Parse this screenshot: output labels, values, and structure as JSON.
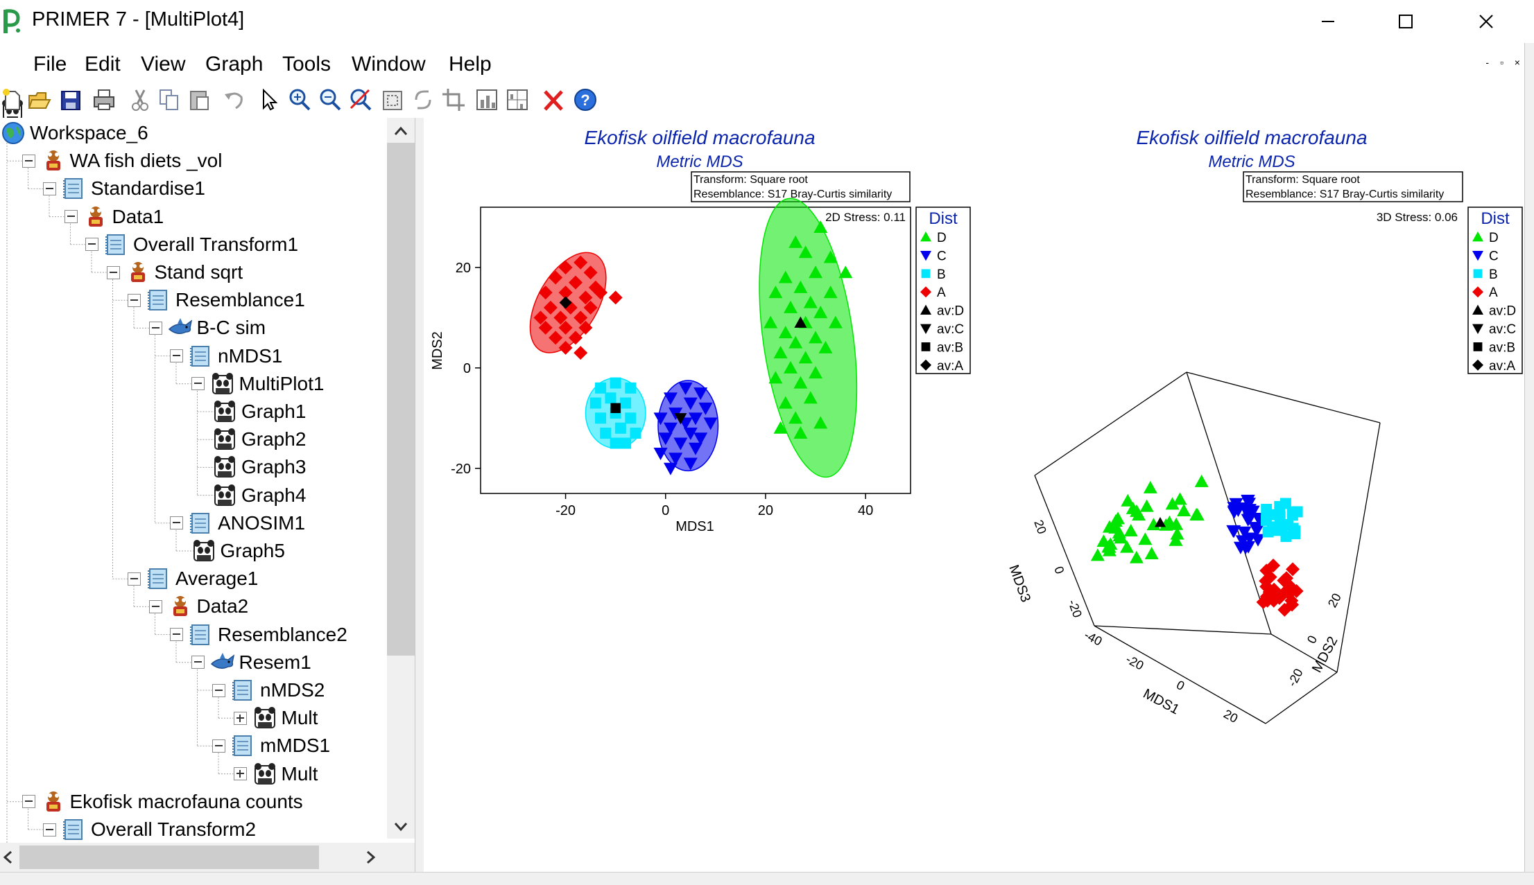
{
  "window": {
    "title": "PRIMER 7 - [MultiPlot4]",
    "app_icon": "primer-logo-icon",
    "controls": [
      "minimize-icon",
      "maximize-icon",
      "close-icon"
    ],
    "mdi_controls": "- ▫ ×"
  },
  "menu": {
    "items": [
      "File",
      "Edit",
      "View",
      "Graph",
      "Tools",
      "Window",
      "Help"
    ]
  },
  "toolbar": {
    "buttons": [
      "new-icon",
      "open-icon",
      "save-icon",
      "print-icon",
      "cut-icon",
      "copy-icon",
      "paste-icon",
      "undo-icon",
      "pointer-icon",
      "zoom-in-icon",
      "zoom-out-icon",
      "zoom-reset-icon",
      "select-all-icon",
      "rotate-icon",
      "crop-icon",
      "plot-icon",
      "multiplot-icon",
      "delete-icon",
      "help-icon"
    ]
  },
  "workspace": {
    "items": [
      {
        "label": "Workspace_6",
        "icon": "globe-icon",
        "indent": 0,
        "expander": "none"
      },
      {
        "label": "WA fish diets _vol",
        "icon": "data-icon",
        "indent": 1,
        "expander": "minus"
      },
      {
        "label": "Standardise1",
        "icon": "worksheet-icon",
        "indent": 2,
        "expander": "minus"
      },
      {
        "label": "Data1",
        "icon": "data-icon",
        "indent": 3,
        "expander": "minus"
      },
      {
        "label": "Overall Transform1",
        "icon": "worksheet-icon",
        "indent": 4,
        "expander": "minus"
      },
      {
        "label": "Stand sqrt",
        "icon": "data-icon",
        "indent": 5,
        "expander": "minus"
      },
      {
        "label": "Resemblance1",
        "icon": "worksheet-icon",
        "indent": 6,
        "expander": "minus"
      },
      {
        "label": "B-C sim",
        "icon": "shark-icon",
        "indent": 7,
        "expander": "minus"
      },
      {
        "label": "nMDS1",
        "icon": "worksheet-icon",
        "indent": 8,
        "expander": "minus"
      },
      {
        "label": "MultiPlot1",
        "icon": "graph-icon",
        "indent": 9,
        "expander": "minus"
      },
      {
        "label": "Graph1",
        "icon": "graph-icon",
        "indent": 10,
        "expander": "none"
      },
      {
        "label": "Graph2",
        "icon": "graph-icon",
        "indent": 10,
        "expander": "none"
      },
      {
        "label": "Graph3",
        "icon": "graph-icon",
        "indent": 10,
        "expander": "none"
      },
      {
        "label": "Graph4",
        "icon": "graph-icon",
        "indent": 10,
        "expander": "none"
      },
      {
        "label": "ANOSIM1",
        "icon": "worksheet-icon",
        "indent": 8,
        "expander": "minus"
      },
      {
        "label": "Graph5",
        "icon": "graph-icon",
        "indent": 9,
        "expander": "none"
      },
      {
        "label": "Average1",
        "icon": "worksheet-icon",
        "indent": 6,
        "expander": "minus"
      },
      {
        "label": "Data2",
        "icon": "data-icon",
        "indent": 7,
        "expander": "minus"
      },
      {
        "label": "Resemblance2",
        "icon": "worksheet-icon",
        "indent": 8,
        "expander": "minus"
      },
      {
        "label": "Resem1",
        "icon": "shark-icon",
        "indent": 9,
        "expander": "minus"
      },
      {
        "label": "nMDS2",
        "icon": "worksheet-icon",
        "indent": 10,
        "expander": "minus"
      },
      {
        "label": "Mult",
        "icon": "graph-icon",
        "indent": 11,
        "expander": "plus"
      },
      {
        "label": "mMDS1",
        "icon": "worksheet-icon",
        "indent": 10,
        "expander": "minus"
      },
      {
        "label": "Mult",
        "icon": "graph-icon",
        "indent": 11,
        "expander": "plus"
      },
      {
        "label": "Ekofisk macrofauna counts",
        "icon": "data-icon",
        "indent": 1,
        "expander": "minus"
      },
      {
        "label": "Overall Transform2",
        "icon": "worksheet-icon",
        "indent": 2,
        "expander": "minus"
      }
    ]
  },
  "plot_left": {
    "title": "Ekofisk oilfield macrofauna",
    "subtitle": "Metric MDS",
    "info_lines": [
      "Transform: Square root",
      "Resemblance: S17 Bray-Curtis similarity"
    ],
    "stress": "2D Stress: 0.11",
    "xlabel": "MDS1",
    "ylabel": "MDS2",
    "xticks": [
      "-20",
      "0",
      "20",
      "40"
    ],
    "yticks": [
      "20",
      "0",
      "-20"
    ]
  },
  "plot_right": {
    "title": "Ekofisk oilfield macrofauna",
    "subtitle": "Metric MDS",
    "info_lines": [
      "Transform: Square root",
      "Resemblance: S17 Bray-Curtis similarity"
    ],
    "stress": "3D Stress: 0.06",
    "axis_labels": [
      "MDS1",
      "MDS2",
      "MDS3"
    ],
    "mds1_ticks": [
      "-40",
      "-20",
      "0",
      "20"
    ],
    "mds2_ticks": [
      "-20",
      "0",
      "20"
    ],
    "mds3_ticks": [
      "20",
      "0",
      "-20"
    ]
  },
  "legend": {
    "title": "Dist",
    "entries": [
      {
        "label": "D",
        "marker": "triangle-up",
        "color": "#00e600"
      },
      {
        "label": "C",
        "marker": "triangle-down",
        "color": "#0000ee"
      },
      {
        "label": "B",
        "marker": "square",
        "color": "#00e6ff"
      },
      {
        "label": "A",
        "marker": "diamond",
        "color": "#ee0000"
      },
      {
        "label": "av:D",
        "marker": "triangle-up",
        "color": "#000000"
      },
      {
        "label": "av:C",
        "marker": "triangle-down",
        "color": "#000000"
      },
      {
        "label": "av:B",
        "marker": "square",
        "color": "#000000"
      },
      {
        "label": "av:A",
        "marker": "diamond",
        "color": "#000000"
      }
    ]
  },
  "colors": {
    "title_blue": "#0b24ac",
    "group_D": "#00e600",
    "group_C": "#0000ee",
    "group_B": "#00e6ff",
    "group_A": "#ee0000"
  },
  "chart_data": [
    {
      "type": "scatter",
      "title": "Ekofisk oilfield macrofauna",
      "subtitle": "Metric MDS",
      "xlabel": "MDS1",
      "ylabel": "MDS2",
      "xlim": [
        -37,
        49
      ],
      "ylim": [
        -25,
        32
      ],
      "series": [
        {
          "name": "D",
          "marker": "triangle-up",
          "color": "#00e600",
          "centroid": [
            27,
            9
          ],
          "points": [
            [
              31,
              28
            ],
            [
              26,
              25
            ],
            [
              33,
              22
            ],
            [
              28,
              23
            ],
            [
              36,
              19
            ],
            [
              24,
              18
            ],
            [
              30,
              19
            ],
            [
              27,
              16
            ],
            [
              33,
              15
            ],
            [
              22,
              15
            ],
            [
              29,
              13
            ],
            [
              25,
              12
            ],
            [
              31,
              11
            ],
            [
              21,
              9
            ],
            [
              28,
              9
            ],
            [
              34,
              9
            ],
            [
              24,
              7
            ],
            [
              30,
              6
            ],
            [
              26,
              5
            ],
            [
              32,
              4
            ],
            [
              23,
              3
            ],
            [
              28,
              2
            ],
            [
              25,
              0
            ],
            [
              30,
              -1
            ],
            [
              22,
              -2
            ],
            [
              27,
              -3
            ],
            [
              29,
              -6
            ],
            [
              24,
              -7
            ],
            [
              26,
              -10
            ],
            [
              31,
              -11
            ],
            [
              23,
              -12
            ],
            [
              27,
              -13
            ]
          ]
        },
        {
          "name": "C",
          "marker": "triangle-down",
          "color": "#0000ee",
          "centroid": [
            3,
            -10
          ],
          "points": [
            [
              4,
              -4
            ],
            [
              7,
              -5
            ],
            [
              1,
              -6
            ],
            [
              5,
              -7
            ],
            [
              8,
              -8
            ],
            [
              2,
              -9
            ],
            [
              6,
              -10
            ],
            [
              -1,
              -10
            ],
            [
              4,
              -11
            ],
            [
              9,
              -11
            ],
            [
              1,
              -12
            ],
            [
              5,
              -13
            ],
            [
              7,
              -14
            ],
            [
              0,
              -14
            ],
            [
              3,
              -15
            ],
            [
              6,
              -16
            ],
            [
              -1,
              -17
            ],
            [
              2,
              -18
            ],
            [
              5,
              -19
            ],
            [
              1,
              -20
            ]
          ]
        },
        {
          "name": "B",
          "marker": "square",
          "color": "#00e6ff",
          "centroid": [
            -10,
            -8
          ],
          "points": [
            [
              -13,
              -4
            ],
            [
              -10,
              -3
            ],
            [
              -7,
              -4
            ],
            [
              -14,
              -7
            ],
            [
              -11,
              -6
            ],
            [
              -8,
              -7
            ],
            [
              -13,
              -10
            ],
            [
              -10,
              -9
            ],
            [
              -7,
              -10
            ],
            [
              -12,
              -13
            ],
            [
              -9,
              -12
            ],
            [
              -6,
              -13
            ],
            [
              -10,
              -15
            ],
            [
              -8,
              -15
            ]
          ]
        },
        {
          "name": "A",
          "marker": "diamond",
          "color": "#ee0000",
          "centroid": [
            -20,
            13
          ],
          "points": [
            [
              -17,
              21
            ],
            [
              -20,
              20
            ],
            [
              -15,
              19
            ],
            [
              -22,
              18
            ],
            [
              -18,
              17
            ],
            [
              -14,
              16
            ],
            [
              -24,
              15
            ],
            [
              -20,
              15
            ],
            [
              -16,
              14
            ],
            [
              -13,
              15
            ],
            [
              -23,
              12
            ],
            [
              -19,
              12
            ],
            [
              -15,
              12
            ],
            [
              -10,
              14
            ],
            [
              -25,
              10
            ],
            [
              -21,
              10
            ],
            [
              -17,
              10
            ],
            [
              -24,
              8
            ],
            [
              -20,
              8
            ],
            [
              -16,
              8
            ],
            [
              -22,
              6
            ],
            [
              -18,
              6
            ],
            [
              -20,
              4
            ],
            [
              -17,
              3
            ]
          ]
        }
      ],
      "ellipses": [
        {
          "group": "D",
          "center": [
            28.5,
            6
          ],
          "rx": 9,
          "ry": 28,
          "angle": -8
        },
        {
          "group": "C",
          "center": [
            4.5,
            -11.5
          ],
          "rx": 6,
          "ry": 9,
          "angle": 0
        },
        {
          "group": "B",
          "center": [
            -10,
            -9
          ],
          "rx": 6,
          "ry": 7,
          "angle": 0
        },
        {
          "group": "A",
          "center": [
            -19.5,
            13
          ],
          "rx": 6,
          "ry": 11,
          "angle": 30
        }
      ],
      "grid": false,
      "legend_position": "right"
    },
    {
      "type": "scatter",
      "title": "Ekofisk oilfield macrofauna",
      "subtitle": "Metric MDS",
      "projection": "3d",
      "axes": [
        "MDS1",
        "MDS2",
        "MDS3"
      ],
      "series": [
        {
          "name": "D",
          "marker": "triangle-up",
          "color": "#00e600"
        },
        {
          "name": "C",
          "marker": "triangle-down",
          "color": "#0000ee"
        },
        {
          "name": "B",
          "marker": "square",
          "color": "#00e6ff"
        },
        {
          "name": "A",
          "marker": "diamond",
          "color": "#ee0000"
        }
      ],
      "grid": false,
      "legend_position": "right"
    }
  ]
}
